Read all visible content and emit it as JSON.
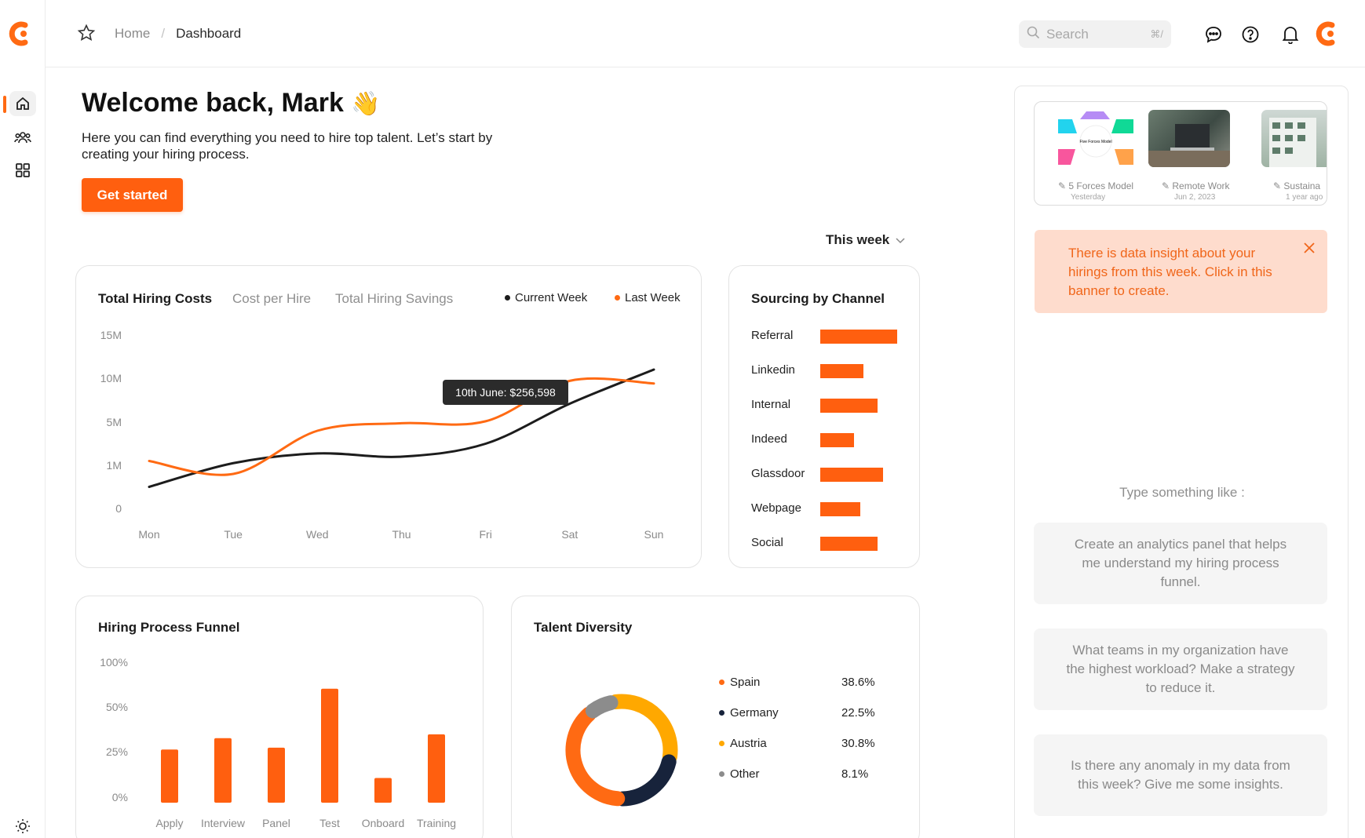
{
  "header": {
    "breadcrumb_home": "Home",
    "breadcrumb_sep": "/",
    "breadcrumb_current": "Dashboard",
    "search_placeholder": "Search",
    "search_shortcut": "⌘/"
  },
  "welcome": {
    "title": "Welcome back, Mark",
    "emoji": "👋",
    "subtitle": "Here you can find everything you need to hire top talent. Let’s start by creating your hiring process.",
    "cta": "Get started"
  },
  "period": "This week",
  "costs": {
    "tabs": [
      "Total Hiring Costs",
      "Cost per Hire",
      "Total Hiring Savings"
    ],
    "legend": [
      "Current Week",
      "Last Week"
    ],
    "tooltip": "10th June: $256,598"
  },
  "sourcing": {
    "title": "Sourcing by Channel"
  },
  "funnel": {
    "title": "Hiring Process Funnel"
  },
  "diversity": {
    "title": "Talent Diversity",
    "items": [
      {
        "label": "Spain",
        "value": "38.6%",
        "color": "#ff6a13"
      },
      {
        "label": "Germany",
        "value": "22.5%",
        "color": "#17233b"
      },
      {
        "label": "Austria",
        "value": "30.8%",
        "color": "#ffa800"
      },
      {
        "label": "Other",
        "value": "8.1%",
        "color": "#8c8c8c"
      }
    ]
  },
  "panel": {
    "recent": [
      {
        "label": "5 Forces Model",
        "date": "Yesterday"
      },
      {
        "label": "Remote Work",
        "date": "Jun 2, 2023"
      },
      {
        "label": "Sustaina",
        "date": "1 year ago"
      }
    ],
    "thumb_caption": "Five Forces Model",
    "insight": "There is data insight about your hirings from this week. Click in this banner to create.",
    "hint": "Type something like :",
    "suggestions": [
      "Create an analytics panel that helps me understand my hiring process funnel.",
      "What teams in my organization have the highest workload? Make a strategy to reduce it.",
      "Is there any anomaly in my data from this week? Give me some insights."
    ]
  },
  "colors": {
    "accent": "#ff5f0f",
    "dark": "#1c1c1c"
  },
  "chart_data": [
    {
      "type": "line",
      "title": "Total Hiring Costs",
      "x": [
        "Mon",
        "Tue",
        "Wed",
        "Thu",
        "Fri",
        "Sat",
        "Sun"
      ],
      "yticks": [
        "15M",
        "10M",
        "5M",
        "1M",
        "0"
      ],
      "series": [
        {
          "name": "Current Week",
          "color": "#1c1c1c",
          "values": [
            0.5,
            1.2,
            2.1,
            1.8,
            3.0,
            7.1,
            11.0
          ]
        },
        {
          "name": "Last Week",
          "color": "#ff6a13",
          "values": [
            1.4,
            0.8,
            4.2,
            4.9,
            5.1,
            9.7,
            9.4
          ]
        }
      ]
    },
    {
      "type": "bar",
      "title": "Sourcing by Channel",
      "orientation": "horizontal",
      "categories": [
        "Referral",
        "Linkedin",
        "Internal",
        "Indeed",
        "Glassdoor",
        "Webpage",
        "Social"
      ],
      "values": [
        100,
        56,
        74,
        44,
        82,
        52,
        74
      ]
    },
    {
      "type": "bar",
      "title": "Hiring Process Funnel",
      "categories": [
        "Apply",
        "Interview",
        "Panel",
        "Test",
        "Onboard",
        "Training"
      ],
      "yticks": [
        "100%",
        "50%",
        "25%",
        "0%"
      ],
      "values": [
        28,
        34,
        29,
        60,
        13,
        36
      ]
    },
    {
      "type": "pie",
      "title": "Talent Diversity",
      "categories": [
        "Spain",
        "Germany",
        "Austria",
        "Other"
      ],
      "values": [
        38.6,
        22.5,
        30.8,
        8.1
      ]
    }
  ]
}
